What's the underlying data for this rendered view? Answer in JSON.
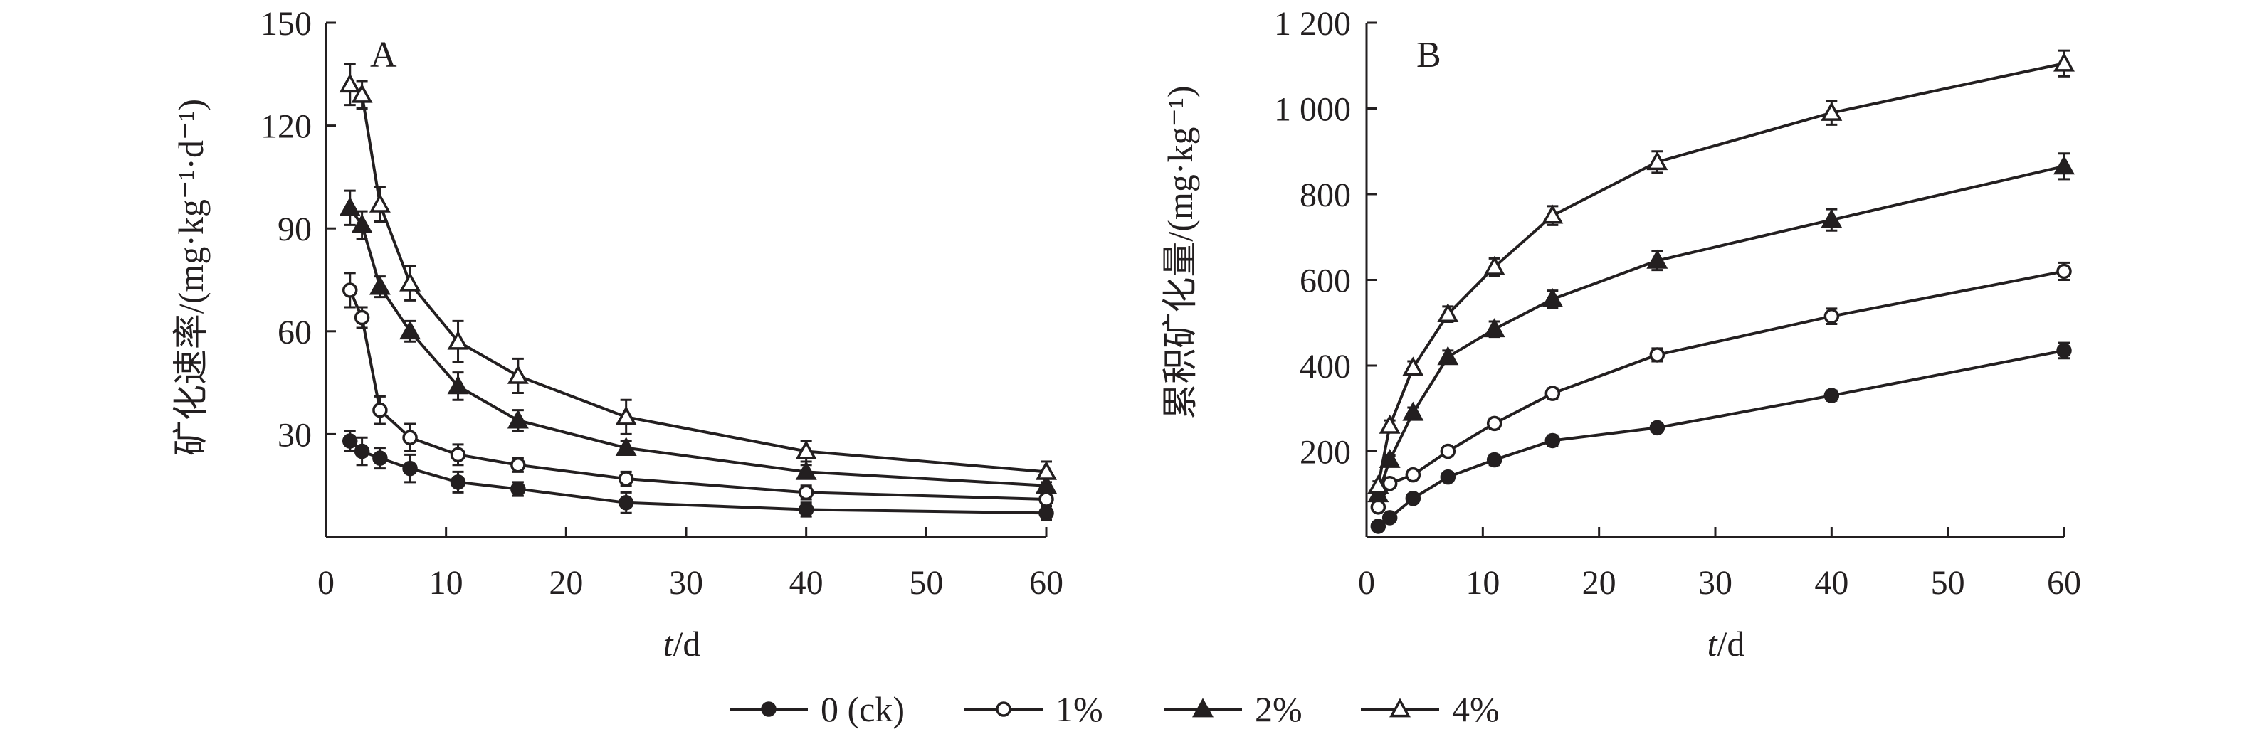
{
  "chart_data": [
    {
      "panel": "A",
      "type": "line",
      "ylabel": "矿化速率/(mg·kg⁻¹·d⁻¹)",
      "xlabel_var": "t",
      "xlabel_unit": "/d",
      "xlim": [
        0,
        60
      ],
      "ylim": [
        0,
        150
      ],
      "xticks": [
        0,
        10,
        20,
        30,
        40,
        50,
        60
      ],
      "xtick_labels": [
        "0",
        "10",
        "20",
        "30",
        "40",
        "50",
        "60"
      ],
      "yticks": [
        30,
        60,
        90,
        120,
        150
      ],
      "ytick_labels": [
        "30",
        "60",
        "90",
        "120",
        "150"
      ],
      "x": [
        2,
        3,
        4.5,
        7,
        11,
        16,
        25,
        40,
        60
      ],
      "series": [
        {
          "name": "0 (ck)",
          "marker": "circle-filled",
          "values": [
            28,
            25,
            23,
            20,
            16,
            14,
            10,
            8,
            7
          ],
          "errors": [
            3,
            4,
            3,
            4,
            3,
            2,
            3,
            2,
            2
          ]
        },
        {
          "name": "1%",
          "marker": "circle-open",
          "values": [
            72,
            64,
            37,
            29,
            24,
            21,
            17,
            13,
            11
          ],
          "errors": [
            5,
            3,
            4,
            4,
            3,
            2,
            2,
            2,
            2
          ]
        },
        {
          "name": "2%",
          "marker": "triangle-filled",
          "values": [
            96,
            91,
            73,
            60,
            44,
            34,
            26,
            19,
            15
          ],
          "errors": [
            5,
            4,
            3,
            3,
            4,
            3,
            2,
            2,
            2
          ]
        },
        {
          "name": "4%",
          "marker": "triangle-open",
          "values": [
            132,
            129,
            97,
            74,
            57,
            47,
            35,
            25,
            19
          ],
          "errors": [
            6,
            4,
            5,
            5,
            6,
            5,
            5,
            3,
            3
          ]
        }
      ]
    },
    {
      "panel": "B",
      "type": "line",
      "ylabel": "累积矿化量/(mg·kg⁻¹)",
      "xlabel_var": "t",
      "xlabel_unit": "/d",
      "xlim": [
        0,
        60
      ],
      "ylim": [
        0,
        1200
      ],
      "xticks": [
        0,
        10,
        20,
        30,
        40,
        50,
        60
      ],
      "xtick_labels": [
        "0",
        "10",
        "20",
        "30",
        "40",
        "50",
        "60"
      ],
      "yticks": [
        200,
        400,
        600,
        800,
        1000,
        1200
      ],
      "ytick_labels": [
        "200",
        "400",
        "600",
        "800",
        "1 000",
        "1 200"
      ],
      "x": [
        1,
        2,
        4,
        7,
        11,
        16,
        25,
        40,
        60
      ],
      "series": [
        {
          "name": "0 (ck)",
          "marker": "circle-filled",
          "values": [
            25,
            45,
            90,
            140,
            180,
            225,
            255,
            330,
            435
          ],
          "errors": [
            5,
            8,
            10,
            10,
            12,
            12,
            10,
            12,
            18
          ]
        },
        {
          "name": "1%",
          "marker": "circle-open",
          "values": [
            70,
            125,
            145,
            200,
            265,
            335,
            425,
            515,
            620
          ],
          "errors": [
            8,
            8,
            10,
            10,
            12,
            12,
            15,
            18,
            20
          ]
        },
        {
          "name": "2%",
          "marker": "triangle-filled",
          "values": [
            100,
            180,
            290,
            420,
            485,
            555,
            645,
            740,
            865
          ],
          "errors": [
            10,
            10,
            12,
            15,
            18,
            20,
            22,
            25,
            30
          ]
        },
        {
          "name": "4%",
          "marker": "triangle-open",
          "values": [
            120,
            260,
            395,
            520,
            630,
            750,
            875,
            990,
            1105
          ],
          "errors": [
            10,
            12,
            15,
            18,
            20,
            22,
            25,
            28,
            30
          ]
        }
      ]
    }
  ],
  "legend": [
    {
      "label": "0 (ck)",
      "marker": "circle-filled"
    },
    {
      "label": "1%",
      "marker": "circle-open"
    },
    {
      "label": "2%",
      "marker": "triangle-filled"
    },
    {
      "label": "4%",
      "marker": "triangle-open"
    }
  ],
  "colors": {
    "ink": "#231f20",
    "background": "#ffffff"
  }
}
